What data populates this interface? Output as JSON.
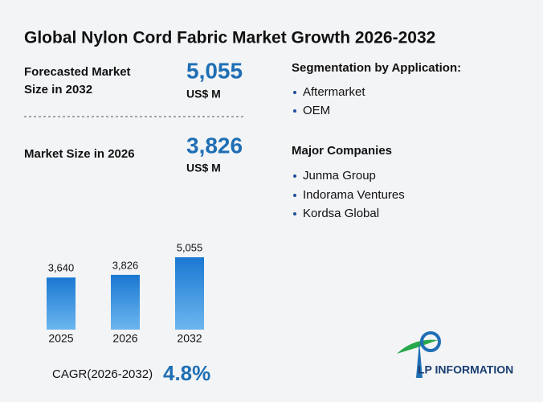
{
  "header": {
    "title": "Global Nylon Cord Fabric Market Growth 2026-2032"
  },
  "stats": [
    {
      "label_lines": [
        "Forecasted Market",
        "Size in 2032"
      ],
      "value": "5,055",
      "unit": "US$ M"
    },
    {
      "label_lines": [
        "Market Size in 2026"
      ],
      "value": "3,826",
      "unit": "US$ M"
    }
  ],
  "segments": {
    "title": "Segmentation by Application:",
    "items": [
      "Aftermarket",
      "OEM"
    ]
  },
  "companies": {
    "title": "Major Companies",
    "items": [
      "Junma Group",
      "Indorama Ventures",
      "Kordsa Global"
    ]
  },
  "chart_data": {
    "type": "bar",
    "categories": [
      "2025",
      "2026",
      "2032"
    ],
    "values": [
      3640,
      3826,
      5055
    ],
    "value_labels": [
      "3,640",
      "3,826",
      "5,055"
    ],
    "color": "#2a86d8"
  },
  "cagr": {
    "label": "CAGR(2026-2032)",
    "value": "4.8%"
  },
  "logo": {
    "text": "LP INFORMATION"
  }
}
